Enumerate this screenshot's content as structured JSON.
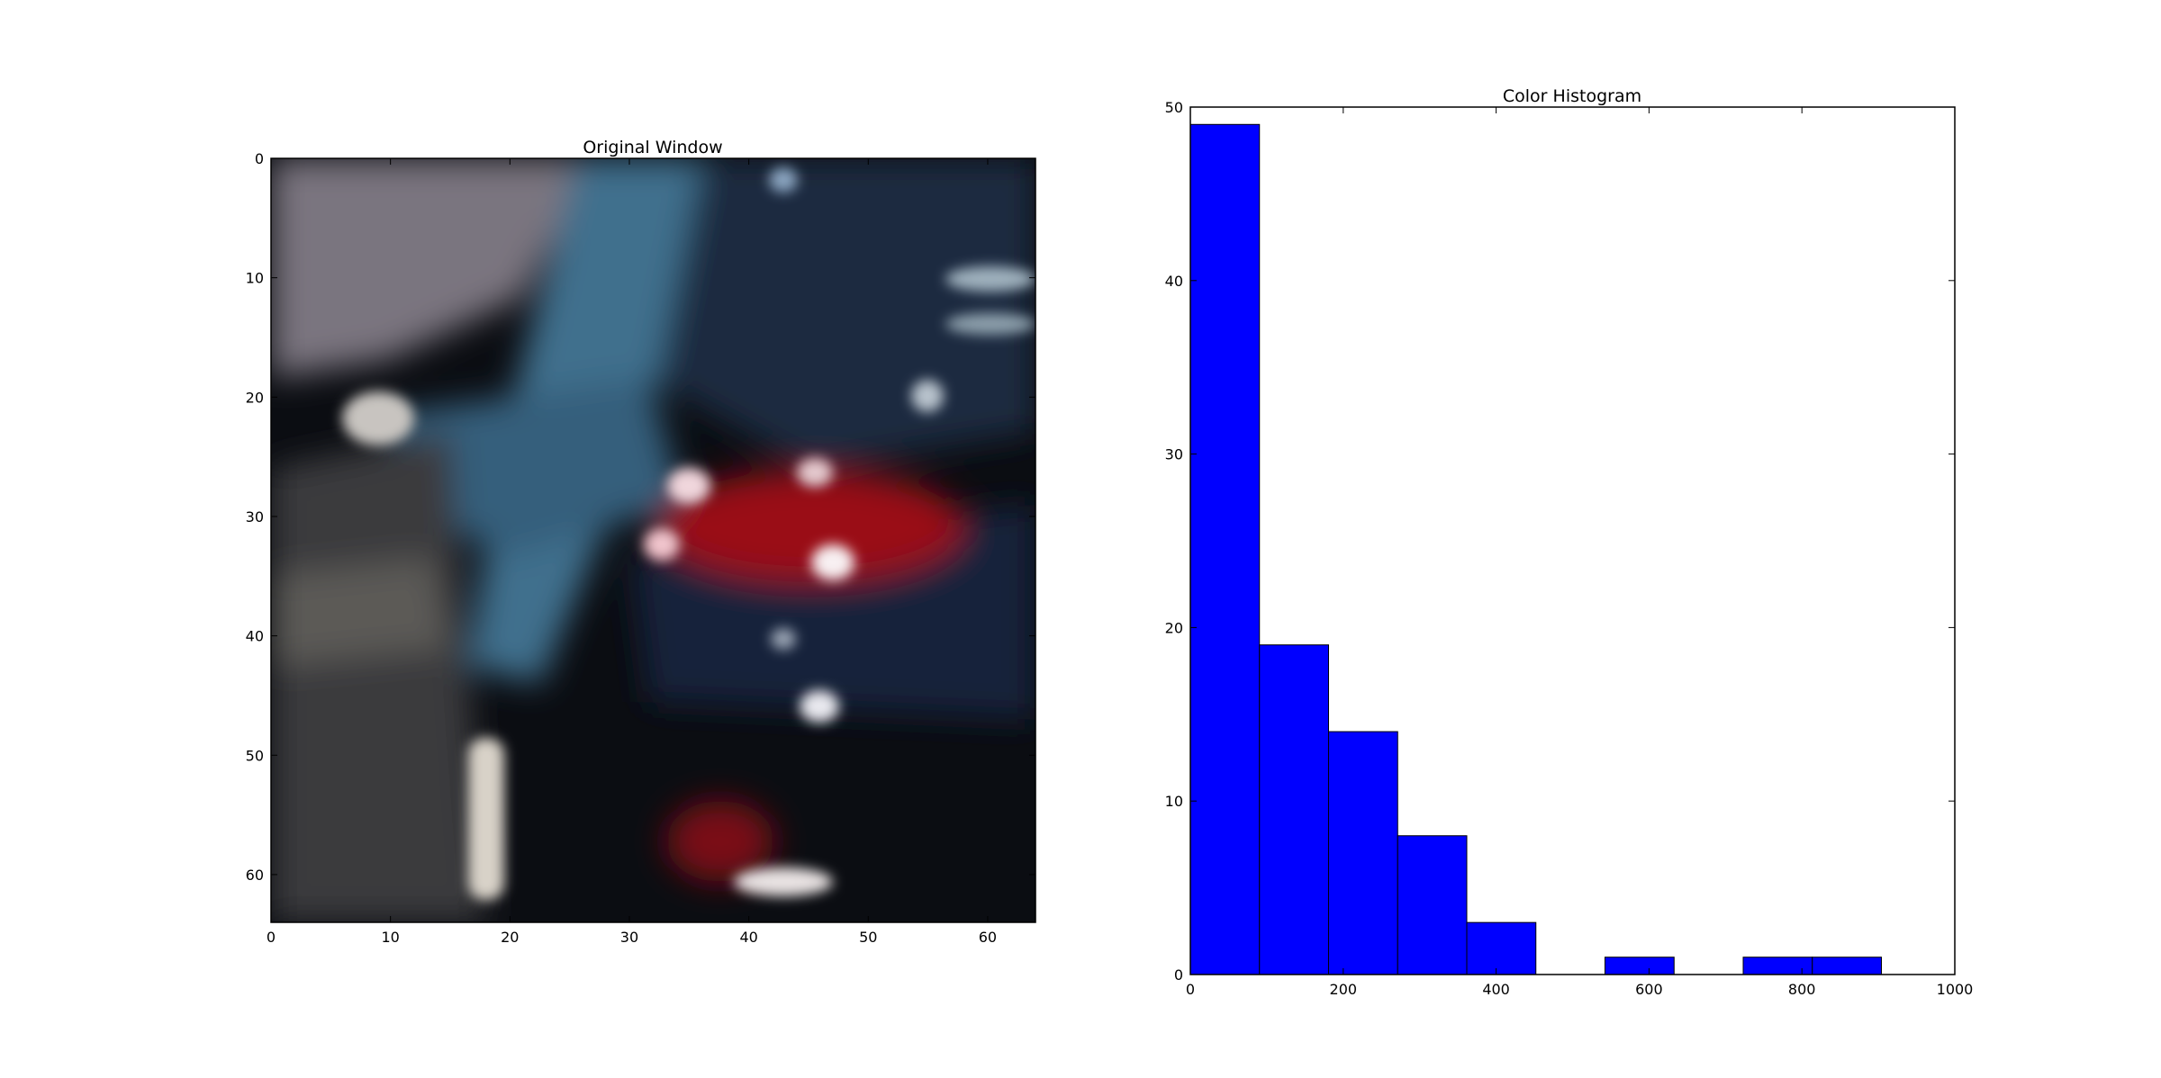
{
  "figure": {
    "panels": [
      {
        "title": "Original Window",
        "type": "image",
        "x_ticks": [
          "0",
          "10",
          "20",
          "30",
          "40",
          "50",
          "60"
        ],
        "y_ticks": [
          "0",
          "10",
          "20",
          "30",
          "40",
          "50",
          "60"
        ],
        "xlim": [
          0,
          64
        ],
        "ylim": [
          64,
          0
        ],
        "image_colors": {
          "bg_dark": "#0b0d12",
          "gray_wall": "#7a757f",
          "dark_gray": "#3a3a3e",
          "blue_car": "#3f6f8d",
          "navy": "#1a2a40",
          "red_light": "#9a0d14",
          "white_spot": "#e8e4e4",
          "light_strip": "#d8d2c8"
        }
      },
      {
        "title": "Color Histogram",
        "type": "histogram"
      }
    ]
  },
  "chart_data": {
    "type": "bar",
    "title": "Color Histogram",
    "bin_edges": [
      0,
      90.4,
      180.8,
      271.2,
      361.6,
      452,
      542.4,
      632.8,
      723.2,
      813.6,
      904
    ],
    "values": [
      49,
      19,
      14,
      8,
      3,
      0,
      1,
      0,
      1,
      1
    ],
    "xlim": [
      0,
      1000
    ],
    "ylim": [
      0,
      50
    ],
    "x_ticks": [
      "0",
      "200",
      "400",
      "600",
      "800",
      "1000"
    ],
    "y_ticks": [
      "0",
      "10",
      "20",
      "30",
      "40",
      "50"
    ],
    "bar_color": "#0000ff",
    "edge_color": "#000000",
    "grid": false
  }
}
